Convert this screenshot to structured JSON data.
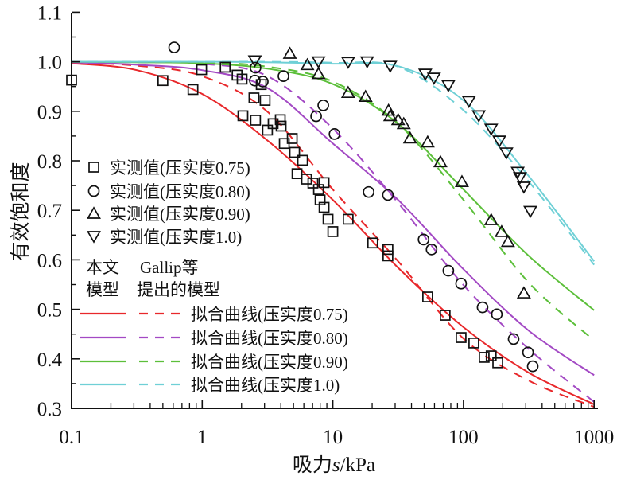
{
  "chart_data": {
    "type": "scatter",
    "title": "",
    "xlabel_prefix": "吸力",
    "xlabel_var": "s",
    "xlabel_unit": "/kPa",
    "ylabel": "有效饱和度",
    "xscale": "log",
    "xlim": [
      0.1,
      1000
    ],
    "ylim": [
      0.3,
      1.1
    ],
    "grid": false,
    "legend_placement": "left",
    "x_ticks": [
      0.1,
      1,
      10,
      100,
      1000
    ],
    "x_tick_labels": [
      "0.1",
      "1",
      "10",
      "100",
      "1000"
    ],
    "y_ticks": [
      0.3,
      0.4,
      0.5,
      0.6,
      0.7,
      0.8,
      0.9,
      1.0,
      1.1
    ],
    "y_tick_labels": [
      "0.3",
      "0.4",
      "0.5",
      "0.6",
      "0.7",
      "0.8",
      "0.9",
      "1.0",
      "1.1"
    ],
    "legend_header": {
      "col1_line1": "本文",
      "col1_line2": "模型",
      "col2_line1": "Gallip等",
      "col2_line2": "提出的模型"
    },
    "measured": [
      {
        "name": "实测值(压实度0.75)",
        "marker": "square",
        "points": [
          [
            0.1,
            0.963
          ],
          [
            0.5,
            0.962
          ],
          [
            0.85,
            0.944
          ],
          [
            0.99,
            0.984
          ],
          [
            1.5,
            0.989
          ],
          [
            1.85,
            0.973
          ],
          [
            2.02,
            0.965
          ],
          [
            2.83,
            0.954
          ],
          [
            2.49,
            0.927
          ],
          [
            3.03,
            0.922
          ],
          [
            2.05,
            0.891
          ],
          [
            2.56,
            0.882
          ],
          [
            3.16,
            0.862
          ],
          [
            3.49,
            0.875
          ],
          [
            3.96,
            0.883
          ],
          [
            4.02,
            0.87
          ],
          [
            4.25,
            0.835
          ],
          [
            4.89,
            0.845
          ],
          [
            5.1,
            0.817
          ],
          [
            5.87,
            0.801
          ],
          [
            5.32,
            0.774
          ],
          [
            6.29,
            0.763
          ],
          [
            7.04,
            0.755
          ],
          [
            8.57,
            0.756
          ],
          [
            7.77,
            0.742
          ],
          [
            7.99,
            0.721
          ],
          [
            8.57,
            0.706
          ],
          [
            9.19,
            0.682
          ],
          [
            10.0,
            0.657
          ],
          [
            13.1,
            0.682
          ],
          [
            20.2,
            0.634
          ],
          [
            26.4,
            0.621
          ],
          [
            26.4,
            0.608
          ],
          [
            53.2,
            0.525
          ],
          [
            72.4,
            0.488
          ],
          [
            95.9,
            0.443
          ],
          [
            120,
            0.432
          ],
          [
            144,
            0.403
          ],
          [
            163,
            0.406
          ],
          [
            183,
            0.392
          ]
        ]
      },
      {
        "name": "实测值(压实度0.80)",
        "marker": "circle",
        "points": [
          [
            0.61,
            1.029
          ],
          [
            2.56,
            0.988
          ],
          [
            2.53,
            0.962
          ],
          [
            2.91,
            0.96
          ],
          [
            4.19,
            0.971
          ],
          [
            8.45,
            0.912
          ],
          [
            7.45,
            0.89
          ],
          [
            10.3,
            0.854
          ],
          [
            18.8,
            0.737
          ],
          [
            26.4,
            0.731
          ],
          [
            49.5,
            0.641
          ],
          [
            57.0,
            0.621
          ],
          [
            76.6,
            0.578
          ],
          [
            95.9,
            0.552
          ],
          [
            140,
            0.504
          ],
          [
            180,
            0.49
          ],
          [
            242,
            0.44
          ],
          [
            312,
            0.413
          ],
          [
            339,
            0.385
          ]
        ]
      },
      {
        "name": "实测值(压实度0.90)",
        "marker": "triangle-up",
        "points": [
          [
            4.69,
            1.017
          ],
          [
            6.38,
            0.994
          ],
          [
            7.77,
            0.976
          ],
          [
            13.1,
            0.938
          ],
          [
            17.8,
            0.93
          ],
          [
            26.7,
            0.902
          ],
          [
            27.5,
            0.891
          ],
          [
            31.6,
            0.883
          ],
          [
            34.9,
            0.875
          ],
          [
            39.0,
            0.846
          ],
          [
            53.2,
            0.838
          ],
          [
            66.6,
            0.798
          ],
          [
            97.3,
            0.758
          ],
          [
            163,
            0.681
          ],
          [
            196,
            0.657
          ],
          [
            219,
            0.637
          ],
          [
            290,
            0.533
          ]
        ]
      },
      {
        "name": "实测值(压实度1.0)",
        "marker": "triangle-down",
        "points": [
          [
            2.53,
            1.002
          ],
          [
            7.77,
            1.0
          ],
          [
            13.1,
            0.999
          ],
          [
            18.3,
            1.0
          ],
          [
            27.5,
            0.991
          ],
          [
            51,
            0.975
          ],
          [
            59.4,
            0.967
          ],
          [
            76.6,
            0.952
          ],
          [
            110,
            0.92
          ],
          [
            131,
            0.891
          ],
          [
            163,
            0.864
          ],
          [
            188,
            0.84
          ],
          [
            213,
            0.816
          ],
          [
            260,
            0.777
          ],
          [
            271,
            0.766
          ],
          [
            290,
            0.747
          ],
          [
            325,
            0.698
          ]
        ]
      }
    ],
    "curve_x": [
      0.1,
      0.316,
      1,
      3.16,
      10,
      31.6,
      100,
      316,
      1000
    ],
    "fitted": [
      {
        "name": "拟合曲线(压实度0.75)",
        "color": "#e8282b",
        "solid": [
          0.997,
          0.983,
          0.935,
          0.841,
          0.721,
          0.584,
          0.464,
          0.372,
          0.308
        ],
        "dashed": [
          0.999,
          0.992,
          0.971,
          0.899,
          0.742,
          0.597,
          0.441,
          0.356,
          0.303
        ]
      },
      {
        "name": "拟合曲线(压实度0.80)",
        "color": "#a349c4",
        "solid": [
          0.999,
          0.994,
          0.983,
          0.947,
          0.835,
          0.721,
          0.581,
          0.457,
          0.367
        ],
        "dashed": [
          1.0,
          0.999,
          0.996,
          0.971,
          0.865,
          0.715,
          0.549,
          0.42,
          0.313
        ]
      },
      {
        "name": "拟合曲线(压实度0.90)",
        "color": "#5cbf3a",
        "solid": [
          1.0,
          0.999,
          0.997,
          0.986,
          0.955,
          0.875,
          0.742,
          0.608,
          0.498
        ],
        "dashed": [
          1.0,
          1.0,
          0.999,
          0.99,
          0.96,
          0.875,
          0.721,
          0.554,
          0.437
        ]
      },
      {
        "name": "拟合曲线(压实度1.0)",
        "color": "#6fd0d6",
        "solid": [
          1.0,
          1.0,
          1.0,
          0.999,
          0.996,
          0.991,
          0.922,
          0.769,
          0.597
        ],
        "dashed": [
          1.0,
          1.0,
          1.0,
          1.0,
          0.998,
          0.99,
          0.902,
          0.758,
          0.59
        ]
      }
    ]
  }
}
